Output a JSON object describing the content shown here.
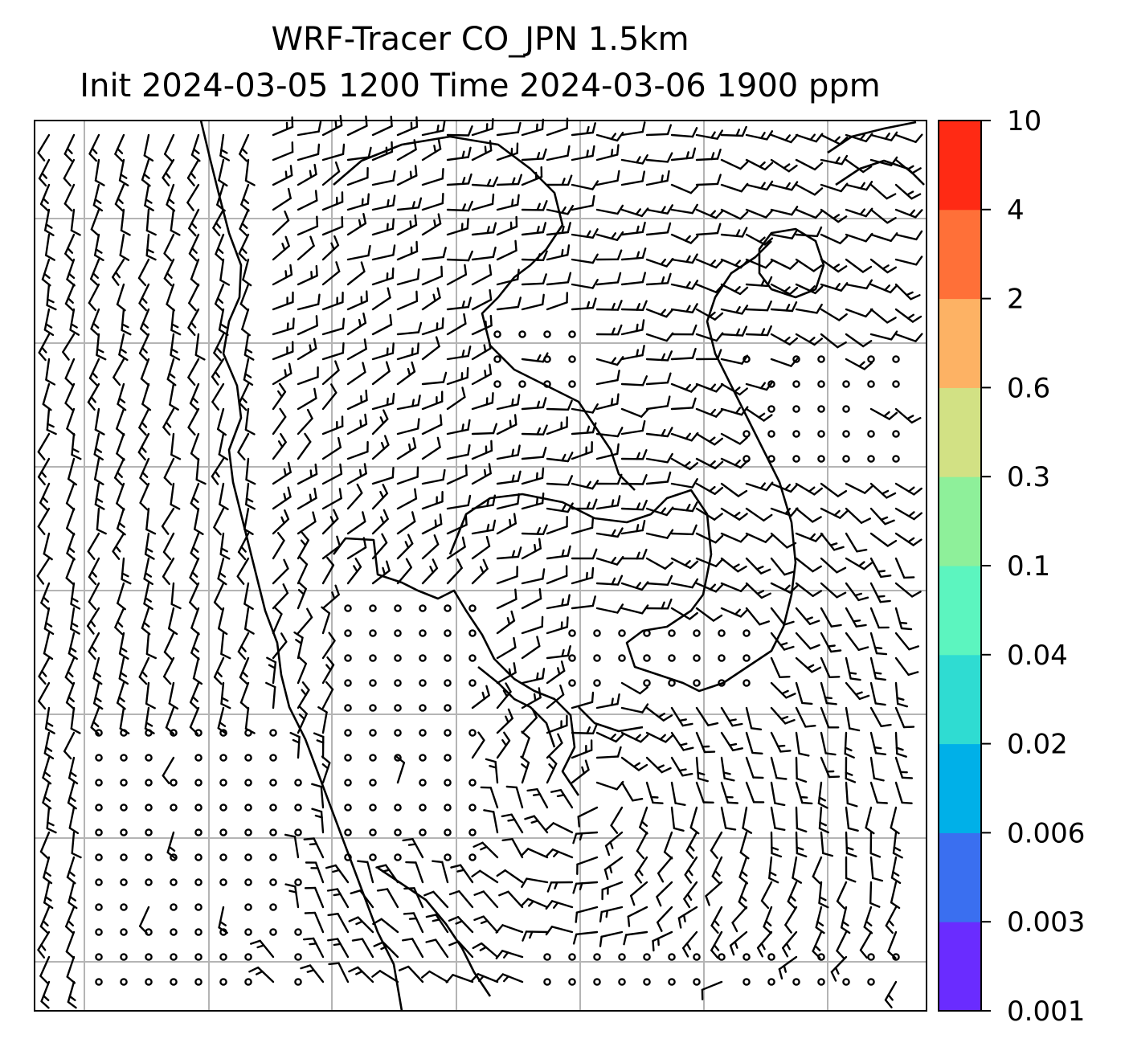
{
  "title": {
    "line1": "WRF-Tracer CO_JPN 1.5km",
    "line2": "Init 2024-03-05 1200 Time 2024-03-06 1900 ppm"
  },
  "colorbar": {
    "levels": [
      "0.001",
      "0.003",
      "0.006",
      "0.02",
      "0.04",
      "0.1",
      "0.3",
      "0.6",
      "2",
      "4",
      "10"
    ],
    "colors": [
      "#6a2cff",
      "#3a6ff0",
      "#00b0e8",
      "#2fdcd2",
      "#5cf5bf",
      "#8ef09a",
      "#d2e184",
      "#fdb264",
      "#ff7038",
      "#ff2a14"
    ]
  },
  "map": {
    "gridline_color": "#b4b4b4",
    "coastline_color": "#000000",
    "wind_barb_color": "#000000",
    "grid_cols": 7,
    "grid_rows": 7
  }
}
